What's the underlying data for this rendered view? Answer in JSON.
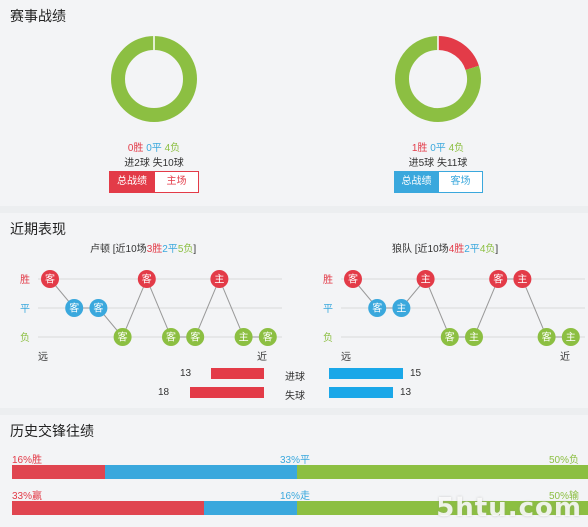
{
  "sections": {
    "record_title": "赛事战绩",
    "recent_title": "近期表现",
    "h2h_title": "历史交锋往绩"
  },
  "colors": {
    "win": "#e33b48",
    "draw": "#3aa8dd",
    "loss": "#8cbf42"
  },
  "left_record": {
    "win": "0胜",
    "draw": "0平",
    "loss": "4负",
    "goals": "进2球 失10球",
    "tab_total": "总战绩",
    "tab_venue": "主场",
    "donut": {
      "win": 0,
      "draw": 0,
      "loss": 4
    }
  },
  "right_record": {
    "win": "1胜",
    "draw": "0平",
    "loss": "4负",
    "goals": "进5球 失11球",
    "tab_total": "总战绩",
    "tab_venue": "客场",
    "donut": {
      "win": 1,
      "draw": 0,
      "loss": 4
    }
  },
  "recent": {
    "y_labels": {
      "win": "胜",
      "draw": "平",
      "loss": "负"
    },
    "far": "远",
    "near": "近",
    "left": {
      "team": "卢顿",
      "summary_prefix": " [近10场",
      "summary_win": "3胜",
      "summary_draw": "2平",
      "summary_loss": "5负",
      "summary_suffix": "]",
      "matches": [
        {
          "r": "W",
          "v": "客"
        },
        {
          "r": "D",
          "v": "客"
        },
        {
          "r": "D",
          "v": "客"
        },
        {
          "r": "L",
          "v": "客"
        },
        {
          "r": "W",
          "v": "客"
        },
        {
          "r": "L",
          "v": "客"
        },
        {
          "r": "L",
          "v": "客"
        },
        {
          "r": "W",
          "v": "主"
        },
        {
          "r": "L",
          "v": "主"
        },
        {
          "r": "L",
          "v": "客"
        }
      ]
    },
    "right": {
      "team": "狼队",
      "summary_prefix": " [近10场",
      "summary_win": "4胜",
      "summary_draw": "2平",
      "summary_loss": "4负",
      "summary_suffix": "]",
      "matches": [
        {
          "r": "W",
          "v": "客"
        },
        {
          "r": "D",
          "v": "客"
        },
        {
          "r": "D",
          "v": "主"
        },
        {
          "r": "W",
          "v": "主"
        },
        {
          "r": "L",
          "v": "客"
        },
        {
          "r": "L",
          "v": "主"
        },
        {
          "r": "W",
          "v": "客"
        },
        {
          "r": "W",
          "v": "主"
        },
        {
          "r": "L",
          "v": "客"
        },
        {
          "r": "L",
          "v": "主"
        }
      ]
    },
    "goals_label": "进球",
    "conceded_label": "失球",
    "left_goals": 13,
    "left_conceded": 18,
    "right_goals": 15,
    "right_conceded": 13
  },
  "h2h": {
    "row1": {
      "win_label": "16%胜",
      "draw_label": "33%平",
      "loss_label": "50%负",
      "win": 16,
      "draw": 33,
      "loss": 50
    },
    "row2": {
      "win_label": "33%赢",
      "draw_label": "16%走",
      "loss_label": "50%输",
      "win": 33,
      "draw": 16,
      "loss": 50
    }
  },
  "watermark": "5htu.com"
}
